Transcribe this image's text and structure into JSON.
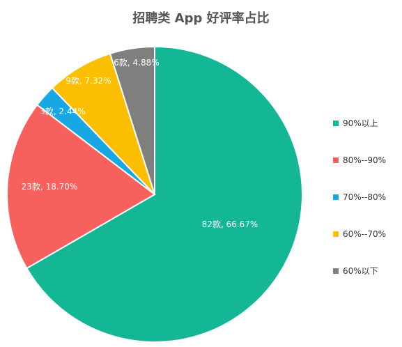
{
  "chart_data": {
    "type": "pie",
    "title": "招聘类 App 好评率占比",
    "slices": [
      {
        "name": "90%以上",
        "count_label": "82款",
        "value": 66.67,
        "percent_label": "66.67%",
        "color": "#13B695"
      },
      {
        "name": "80%--90%",
        "count_label": "23款",
        "value": 18.7,
        "percent_label": "18.70%",
        "color": "#F8605E"
      },
      {
        "name": "70%--80%",
        "count_label": "3款",
        "value": 2.44,
        "percent_label": "2.44%",
        "color": "#17A8E3"
      },
      {
        "name": "60%--70%",
        "count_label": "9款",
        "value": 7.32,
        "percent_label": "7.32%",
        "color": "#FCBE00"
      },
      {
        "name": "60%以下",
        "count_label": "6款",
        "value": 4.88,
        "percent_label": "4.88%",
        "color": "#7F7F7F"
      }
    ],
    "legend_position": "right"
  }
}
